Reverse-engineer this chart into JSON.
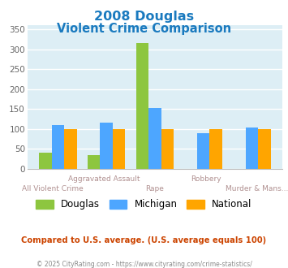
{
  "title_line1": "2008 Douglas",
  "title_line2": "Violent Crime Comparison",
  "title_color": "#1a7abf",
  "categories": [
    "All Violent Crime",
    "Aggravated Assault",
    "Rape",
    "Robbery",
    "Murder & Mans..."
  ],
  "douglas": [
    40,
    35,
    315,
    0,
    0
  ],
  "michigan": [
    110,
    117,
    153,
    90,
    103
  ],
  "national": [
    100,
    100,
    100,
    100,
    100
  ],
  "douglas_color": "#8dc63f",
  "michigan_color": "#4da6ff",
  "national_color": "#ffa500",
  "ylim": [
    0,
    360
  ],
  "yticks": [
    0,
    50,
    100,
    150,
    200,
    250,
    300,
    350
  ],
  "bg_color": "#ddeef5",
  "grid_color": "#ffffff",
  "label_color_row1": "#b09090",
  "label_color_row2": "#b09090",
  "footer_text": "© 2025 CityRating.com - https://www.cityrating.com/crime-statistics/",
  "compare_text": "Compared to U.S. average. (U.S. average equals 100)",
  "compare_color": "#cc4400",
  "footer_color": "#888888",
  "row1_labels": [
    "",
    "Aggravated Assault",
    "",
    "Robbery",
    ""
  ],
  "row2_labels": [
    "All Violent Crime",
    "",
    "Rape",
    "",
    "Murder & Mans..."
  ]
}
